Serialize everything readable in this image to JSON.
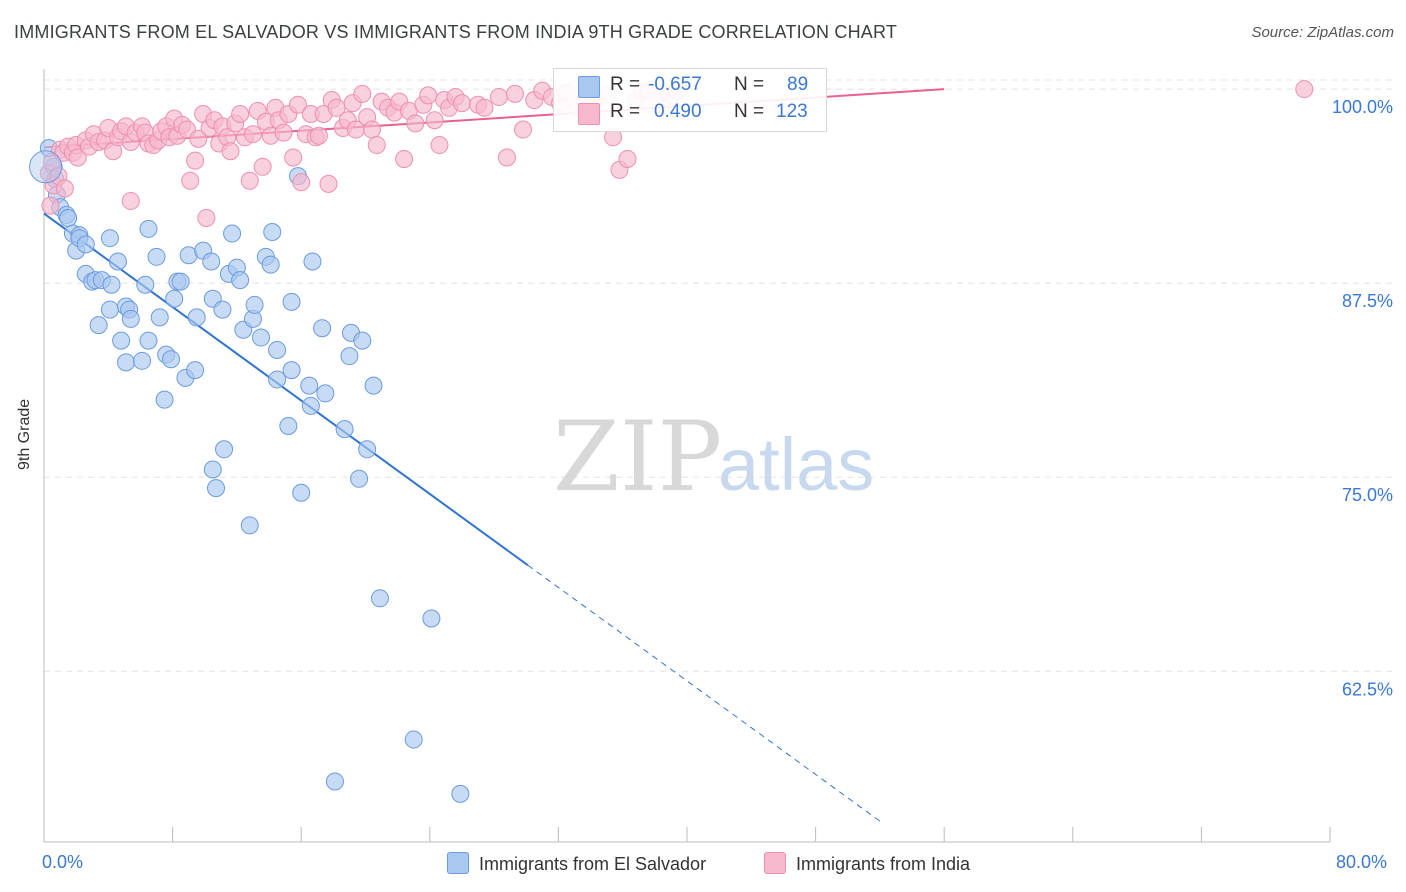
{
  "title": "IMMIGRANTS FROM EL SALVADOR VS IMMIGRANTS FROM INDIA 9TH GRADE CORRELATION CHART",
  "source": "Source: ZipAtlas.com",
  "watermark": {
    "zip": "ZIP",
    "atlas": "atlas"
  },
  "legend": {
    "r_label": "R =",
    "n_label": "N =",
    "rows": [
      {
        "r": "-0.657",
        "n": "89"
      },
      {
        "r": "0.490",
        "n": "123"
      }
    ]
  },
  "bottom_legend": [
    "Immigrants from El Salvador",
    "Immigrants from India"
  ],
  "x_tick_labels": [
    "0.0%",
    "80.0%"
  ],
  "colors": {
    "blue_fill": "#a9c8f0",
    "blue_stroke": "#6b9be0",
    "blue_line": "#2f74d0",
    "pink_fill": "#f6b8cc",
    "pink_stroke": "#ee8fae",
    "pink_line": "#e8608f",
    "tick_text": "#3a78d4",
    "grid": "#e3e3e3"
  },
  "chart_data": {
    "type": "scatter",
    "title": "IMMIGRANTS FROM EL SALVADOR VS IMMIGRANTS FROM INDIA 9TH GRADE CORRELATION CHART",
    "xlabel": "",
    "ylabel": "9th Grade",
    "xlim": [
      0,
      80
    ],
    "ylim": [
      51.5,
      101.3
    ],
    "y_ticks": [
      {
        "value": 100,
        "label": "100.0%"
      },
      {
        "value": 87.5,
        "label": "87.5%"
      },
      {
        "value": 75,
        "label": "75.0%"
      },
      {
        "value": 62.5,
        "label": "62.5%"
      }
    ],
    "grid": true,
    "legend_position": "top-center",
    "series": [
      {
        "name": "Immigrants from El Salvador",
        "stats": {
          "R": -0.657,
          "N": 89
        },
        "trend": {
          "x0": 0,
          "y0": 91.99,
          "x1": 30.1,
          "y1": 69.33,
          "dashed_to_x": 52.1
        },
        "points": [
          [
            0.3,
            96.2
          ],
          [
            0.6,
            95.0
          ],
          [
            0.7,
            94.2
          ],
          [
            0.8,
            93.2
          ],
          [
            1.0,
            92.4
          ],
          [
            1.4,
            91.9
          ],
          [
            1.5,
            91.7
          ],
          [
            1.8,
            90.7
          ],
          [
            2.2,
            90.6
          ],
          [
            2.0,
            89.6
          ],
          [
            2.2,
            90.4
          ],
          [
            2.6,
            90.0
          ],
          [
            2.6,
            88.1
          ],
          [
            3.0,
            87.6
          ],
          [
            3.2,
            87.7
          ],
          [
            3.6,
            87.7
          ],
          [
            4.6,
            88.9
          ],
          [
            4.2,
            87.4
          ],
          [
            4.1,
            90.4
          ],
          [
            3.4,
            84.8
          ],
          [
            4.1,
            85.8
          ],
          [
            4.8,
            83.8
          ],
          [
            5.1,
            86.0
          ],
          [
            5.3,
            85.8
          ],
          [
            5.4,
            85.2
          ],
          [
            5.1,
            82.4
          ],
          [
            6.1,
            82.5
          ],
          [
            6.3,
            87.4
          ],
          [
            6.5,
            83.8
          ],
          [
            6.5,
            91.0
          ],
          [
            7.0,
            89.2
          ],
          [
            7.2,
            85.3
          ],
          [
            7.5,
            80.0
          ],
          [
            7.6,
            82.9
          ],
          [
            7.9,
            82.6
          ],
          [
            8.1,
            86.5
          ],
          [
            8.3,
            87.6
          ],
          [
            8.5,
            87.6
          ],
          [
            8.8,
            81.4
          ],
          [
            9.0,
            89.3
          ],
          [
            9.4,
            81.9
          ],
          [
            9.5,
            85.3
          ],
          [
            9.9,
            89.6
          ],
          [
            10.4,
            88.9
          ],
          [
            10.5,
            86.5
          ],
          [
            10.5,
            75.5
          ],
          [
            10.7,
            74.3
          ],
          [
            11.1,
            85.8
          ],
          [
            11.2,
            76.8
          ],
          [
            11.5,
            88.1
          ],
          [
            11.7,
            90.7
          ],
          [
            12.0,
            88.5
          ],
          [
            12.2,
            87.7
          ],
          [
            12.4,
            84.5
          ],
          [
            12.8,
            71.9
          ],
          [
            13.0,
            85.2
          ],
          [
            13.1,
            86.1
          ],
          [
            13.5,
            84.0
          ],
          [
            13.8,
            89.2
          ],
          [
            14.1,
            88.7
          ],
          [
            14.2,
            90.8
          ],
          [
            14.5,
            83.2
          ],
          [
            14.5,
            81.3
          ],
          [
            15.2,
            78.3
          ],
          [
            15.4,
            81.9
          ],
          [
            15.4,
            86.3
          ],
          [
            15.8,
            94.4
          ],
          [
            16.0,
            74.0
          ],
          [
            16.5,
            80.9
          ],
          [
            16.6,
            79.6
          ],
          [
            16.7,
            88.9
          ],
          [
            17.3,
            84.6
          ],
          [
            17.5,
            80.4
          ],
          [
            18.1,
            55.4
          ],
          [
            18.7,
            78.1
          ],
          [
            19.0,
            82.8
          ],
          [
            19.1,
            84.3
          ],
          [
            19.6,
            74.9
          ],
          [
            19.8,
            83.8
          ],
          [
            20.1,
            76.8
          ],
          [
            20.5,
            80.9
          ],
          [
            20.9,
            67.2
          ],
          [
            23.0,
            58.1
          ],
          [
            24.1,
            65.9
          ],
          [
            25.9,
            54.6
          ]
        ]
      },
      {
        "name": "Immigrants from India",
        "stats": {
          "R": 0.49,
          "N": 123
        },
        "trend": {
          "x0": 0,
          "y0": 96.25,
          "x1": 56,
          "y1": 100.0
        },
        "points": [
          [
            0.3,
            94.6
          ],
          [
            0.5,
            95.3
          ],
          [
            0.6,
            93.8
          ],
          [
            0.9,
            94.4
          ],
          [
            1.0,
            96.1
          ],
          [
            1.2,
            95.9
          ],
          [
            1.3,
            93.6
          ],
          [
            1.5,
            96.3
          ],
          [
            1.8,
            95.9
          ],
          [
            2.0,
            96.4
          ],
          [
            2.1,
            95.6
          ],
          [
            2.6,
            96.7
          ],
          [
            2.8,
            96.3
          ],
          [
            3.1,
            97.1
          ],
          [
            3.4,
            96.6
          ],
          [
            3.8,
            96.7
          ],
          [
            4.0,
            97.5
          ],
          [
            4.3,
            96.0
          ],
          [
            4.6,
            96.9
          ],
          [
            4.8,
            97.3
          ],
          [
            5.1,
            97.6
          ],
          [
            5.4,
            96.6
          ],
          [
            5.7,
            97.2
          ],
          [
            5.4,
            92.8
          ],
          [
            6.1,
            97.6
          ],
          [
            6.3,
            97.2
          ],
          [
            6.5,
            96.5
          ],
          [
            6.8,
            96.4
          ],
          [
            7.1,
            96.7
          ],
          [
            7.3,
            97.3
          ],
          [
            7.6,
            97.6
          ],
          [
            7.8,
            96.9
          ],
          [
            8.1,
            98.1
          ],
          [
            8.3,
            97.0
          ],
          [
            8.6,
            97.7
          ],
          [
            8.9,
            97.4
          ],
          [
            9.1,
            94.1
          ],
          [
            9.4,
            95.4
          ],
          [
            9.6,
            96.8
          ],
          [
            9.9,
            98.4
          ],
          [
            10.1,
            91.7
          ],
          [
            10.3,
            97.5
          ],
          [
            10.6,
            98.0
          ],
          [
            10.9,
            96.5
          ],
          [
            11.1,
            97.6
          ],
          [
            11.4,
            96.9
          ],
          [
            11.6,
            96.0
          ],
          [
            11.9,
            97.8
          ],
          [
            12.2,
            98.4
          ],
          [
            12.5,
            96.9
          ],
          [
            12.8,
            94.1
          ],
          [
            13.0,
            97.1
          ],
          [
            13.3,
            98.6
          ],
          [
            13.6,
            95.0
          ],
          [
            13.8,
            97.9
          ],
          [
            14.1,
            97.0
          ],
          [
            14.4,
            98.8
          ],
          [
            14.6,
            98.0
          ],
          [
            14.9,
            97.2
          ],
          [
            15.2,
            98.4
          ],
          [
            15.5,
            95.6
          ],
          [
            15.8,
            99.0
          ],
          [
            16.0,
            94.0
          ],
          [
            16.3,
            97.1
          ],
          [
            16.6,
            98.4
          ],
          [
            16.9,
            96.9
          ],
          [
            17.1,
            97.0
          ],
          [
            17.4,
            98.4
          ],
          [
            17.7,
            93.9
          ],
          [
            17.9,
            99.3
          ],
          [
            18.2,
            98.8
          ],
          [
            18.6,
            97.5
          ],
          [
            18.9,
            98.0
          ],
          [
            19.2,
            99.1
          ],
          [
            19.4,
            97.4
          ],
          [
            19.8,
            99.7
          ],
          [
            20.1,
            98.2
          ],
          [
            20.4,
            97.4
          ],
          [
            20.7,
            96.4
          ],
          [
            21.0,
            99.2
          ],
          [
            21.4,
            98.8
          ],
          [
            21.8,
            98.5
          ],
          [
            22.1,
            99.2
          ],
          [
            22.4,
            95.5
          ],
          [
            22.7,
            98.6
          ],
          [
            23.1,
            97.8
          ],
          [
            23.6,
            99.0
          ],
          [
            23.9,
            99.6
          ],
          [
            24.3,
            98.0
          ],
          [
            24.6,
            96.4
          ],
          [
            24.9,
            99.3
          ],
          [
            25.2,
            98.8
          ],
          [
            25.6,
            99.5
          ],
          [
            26.0,
            99.1
          ],
          [
            27.0,
            99.0
          ],
          [
            27.4,
            98.8
          ],
          [
            28.3,
            99.5
          ],
          [
            28.8,
            95.6
          ],
          [
            29.3,
            99.7
          ],
          [
            29.8,
            97.4
          ],
          [
            30.5,
            99.3
          ],
          [
            31.0,
            99.9
          ],
          [
            31.6,
            99.5
          ],
          [
            32.1,
            99.1
          ],
          [
            32.5,
            99.8
          ],
          [
            33.2,
            98.8
          ],
          [
            33.8,
            99.6
          ],
          [
            34.3,
            99.3
          ],
          [
            35.0,
            99.6
          ],
          [
            35.4,
            96.9
          ],
          [
            35.8,
            94.8
          ],
          [
            36.3,
            95.5
          ],
          [
            36.8,
            99.2
          ],
          [
            37.2,
            99.8
          ],
          [
            37.6,
            99.9
          ],
          [
            38.1,
            99.5
          ],
          [
            38.6,
            99.8
          ],
          [
            39.0,
            99.6
          ],
          [
            39.4,
            99.9
          ],
          [
            78.4,
            100.0
          ],
          [
            0.4,
            92.5
          ]
        ]
      }
    ]
  }
}
